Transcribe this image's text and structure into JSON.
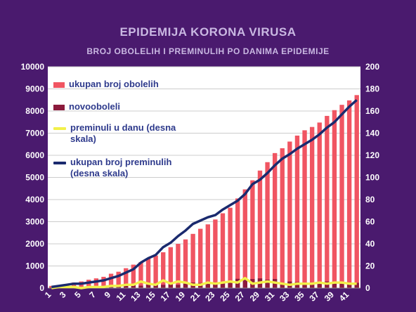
{
  "colors": {
    "background": "#4a1a6e",
    "plot_background": "#ffffff",
    "grid": "#cccccc",
    "cumulative_cases": "#f05562",
    "new_cases": "#8b1a3c",
    "daily_deaths": "#f2f04a",
    "cumulative_deaths": "#1a2a6e",
    "axis_text": "#ffffff",
    "legend_text": "#2e3a8c"
  },
  "chart_data": {
    "type": "bar",
    "title": "EPIDEMIJA KORONA VIRUSA",
    "subtitle": "BROJ OBOLELIH I PREMINULIH PO DANIMA EPIDEMIJE",
    "x": [
      1,
      2,
      3,
      4,
      5,
      6,
      7,
      8,
      9,
      10,
      11,
      12,
      13,
      14,
      15,
      16,
      17,
      18,
      19,
      20,
      21,
      22,
      23,
      24,
      25,
      26,
      27,
      28,
      29,
      30,
      31,
      32,
      33,
      34,
      35,
      36,
      37,
      38,
      39,
      40,
      41,
      42
    ],
    "x_tick_labels": [
      "1",
      "3",
      "5",
      "7",
      "9",
      "11",
      "13",
      "15",
      "17",
      "19",
      "21",
      "23",
      "25",
      "27",
      "29",
      "31",
      "33",
      "35",
      "37",
      "39",
      "41"
    ],
    "y_left": {
      "ticks": [
        "0",
        "1000",
        "2000",
        "3000",
        "4000",
        "5000",
        "6000",
        "7000",
        "8000",
        "9000",
        "10000"
      ],
      "ylim": [
        0,
        10000
      ]
    },
    "y_right": {
      "ticks": [
        "0",
        "20",
        "40",
        "60",
        "80",
        "100",
        "120",
        "140",
        "160",
        "180",
        "200"
      ],
      "ylim": [
        0,
        200
      ]
    },
    "grid": true,
    "legend_position": "top-left",
    "series": [
      {
        "name": "ukupan broj obolelih",
        "type": "bar",
        "axis": "left",
        "values": [
          100,
          130,
          190,
          250,
          300,
          380,
          440,
          510,
          650,
          740,
          900,
          1060,
          1170,
          1330,
          1470,
          1620,
          1850,
          2000,
          2200,
          2450,
          2680,
          2880,
          3100,
          3380,
          3630,
          4050,
          4460,
          4870,
          5310,
          5690,
          6100,
          6320,
          6620,
          6890,
          7130,
          7280,
          7480,
          7780,
          8040,
          8280,
          8480,
          8720
        ]
      },
      {
        "name": "novooboleli",
        "type": "bar",
        "axis": "left",
        "values": [
          30,
          30,
          60,
          60,
          50,
          80,
          60,
          70,
          140,
          90,
          160,
          160,
          110,
          160,
          140,
          150,
          230,
          150,
          200,
          250,
          230,
          200,
          220,
          280,
          250,
          420,
          410,
          410,
          440,
          380,
          410,
          220,
          300,
          270,
          240,
          150,
          200,
          300,
          260,
          240,
          200,
          240
        ]
      },
      {
        "name": "preminuli u danu (desna skala)",
        "type": "line",
        "axis": "right",
        "values": [
          0,
          1,
          1,
          1,
          0,
          1,
          1,
          1,
          2,
          2,
          3,
          3,
          6,
          4,
          3,
          7,
          4,
          6,
          5,
          3,
          3,
          5,
          4,
          5,
          6,
          5,
          9,
          4,
          5,
          6,
          5,
          4,
          3,
          4,
          4,
          4,
          5,
          4,
          5,
          5,
          4,
          4
        ]
      },
      {
        "name": "ukupan broj preminulih (desna skala)",
        "type": "line",
        "axis": "right",
        "values": [
          1,
          2,
          3,
          4,
          4,
          5,
          6,
          7,
          9,
          11,
          14,
          17,
          23,
          27,
          30,
          37,
          41,
          47,
          52,
          58,
          61,
          64,
          66,
          71,
          75,
          79,
          85,
          94,
          98,
          104,
          111,
          117,
          121,
          126,
          130,
          134,
          139,
          145,
          150,
          157,
          164,
          170
        ]
      }
    ]
  }
}
